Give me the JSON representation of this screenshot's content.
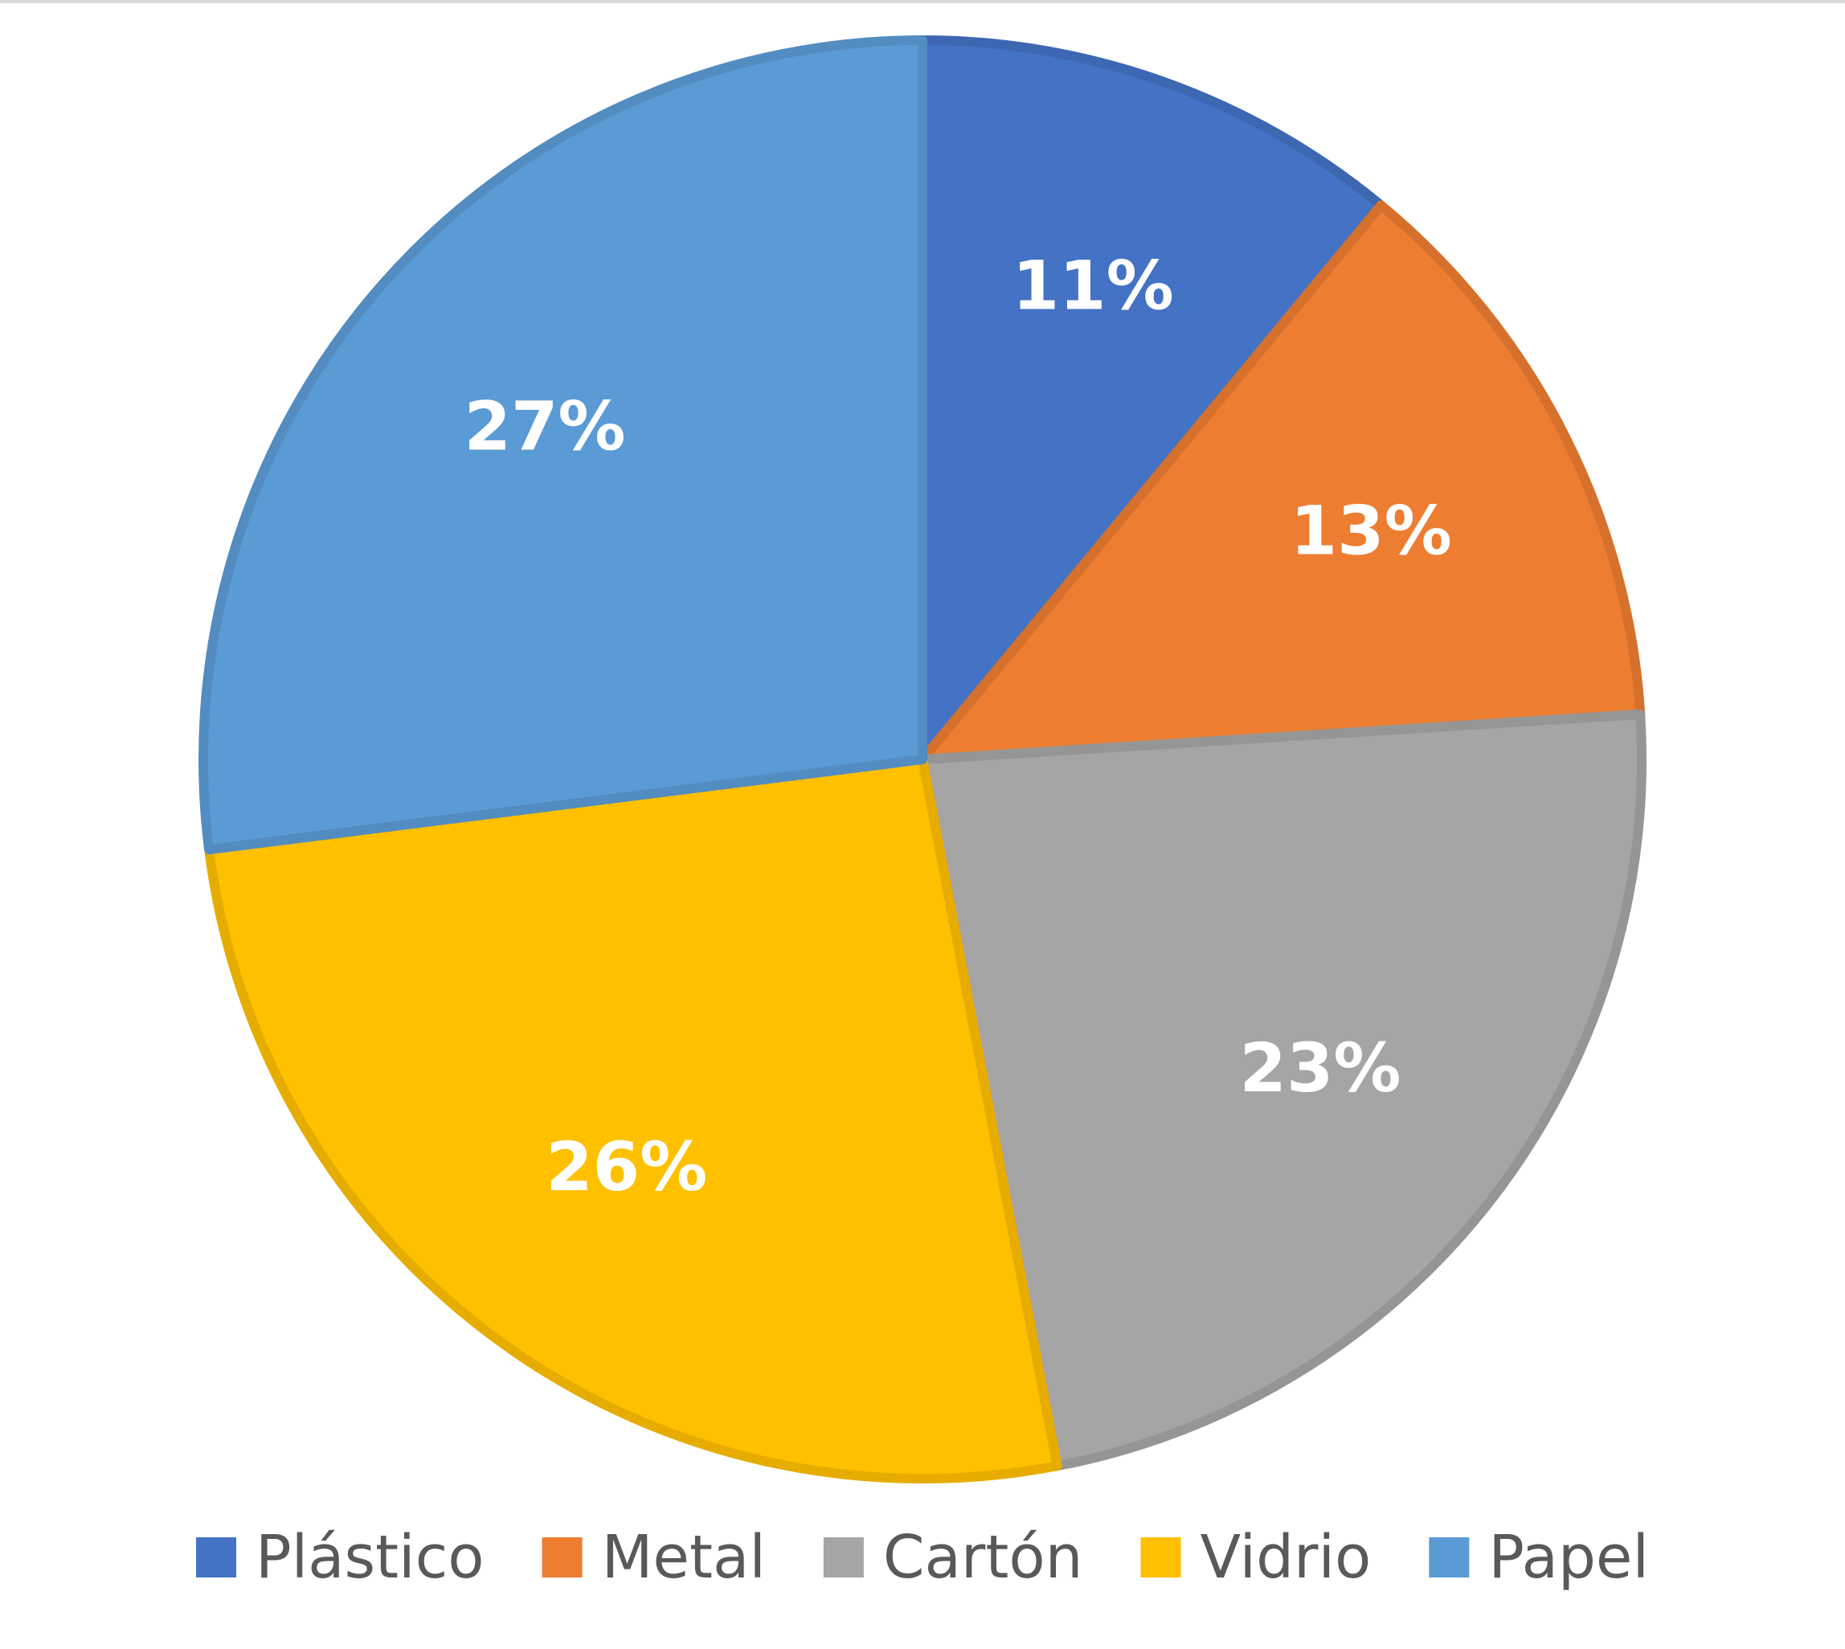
{
  "chart_data": {
    "type": "pie",
    "title": "",
    "slices": [
      {
        "name": "Plástico",
        "value": 11,
        "label": "11%",
        "color": "#4472C4",
        "border": "#3E67B1"
      },
      {
        "name": "Metal",
        "value": 13,
        "label": "13%",
        "color": "#ED7D31",
        "border": "#D5712C"
      },
      {
        "name": "Cartón",
        "value": 23,
        "label": "23%",
        "color": "#A5A5A5",
        "border": "#959595"
      },
      {
        "name": "Vidrio",
        "value": 26,
        "label": "26%",
        "color": "#FFC000",
        "border": "#E6AD00"
      },
      {
        "name": "Papel",
        "value": 27,
        "label": "27%",
        "color": "#5B9BD5",
        "border": "#528CC0"
      }
    ],
    "start_angle": "12 o'clock",
    "direction": "clockwise",
    "legend": {
      "position": "bottom",
      "entries": [
        "Plástico",
        "Metal",
        "Cartón",
        "Vidrio",
        "Papel"
      ]
    }
  }
}
